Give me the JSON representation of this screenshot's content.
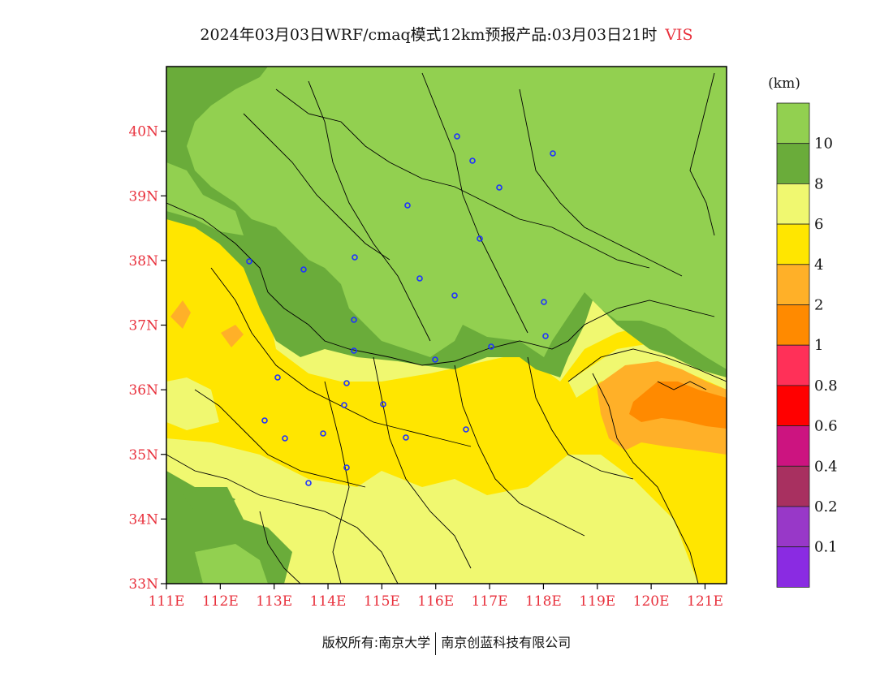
{
  "header": {
    "title": "2024年03月03日WRF/cmaq模式12km预报产品:03月03日21时",
    "variable": "VIS"
  },
  "map": {
    "region": "East China (Shandong / Henan / Hebei area)",
    "lat_ticks": [
      "40N",
      "39N",
      "38N",
      "37N",
      "36N",
      "35N",
      "34N",
      "33N"
    ],
    "lon_ticks": [
      "111E",
      "112E",
      "113E",
      "114E",
      "115E",
      "116E",
      "117E",
      "118E",
      "119E",
      "120E",
      "121E"
    ],
    "lat_range": [
      33,
      41
    ],
    "lon_range": [
      111,
      121.4
    ],
    "tick_color": "#e8303c"
  },
  "legend": {
    "unit": "(km)",
    "bins": [
      {
        "label": "10",
        "color": "#92d050"
      },
      {
        "label": "8",
        "color": "#6aac3a"
      },
      {
        "label": "6",
        "color": "#f0f870"
      },
      {
        "label": "4",
        "color": "#ffe600"
      },
      {
        "label": "2",
        "color": "#ffb028"
      },
      {
        "label": "1",
        "color": "#ff8a00"
      },
      {
        "label": "0.8",
        "color": "#ff3058"
      },
      {
        "label": "0.6",
        "color": "#ff0000"
      },
      {
        "label": "0.4",
        "color": "#cc1480"
      },
      {
        "label": "0.2",
        "color": "#a83060"
      },
      {
        "label": "0.1",
        "color": "#9838c8"
      },
      {
        "label": "",
        "color": "#8a2be2"
      }
    ]
  },
  "footer": {
    "left": "版权所有:南京大学",
    "right": "南京创蓝科技有限公司"
  }
}
